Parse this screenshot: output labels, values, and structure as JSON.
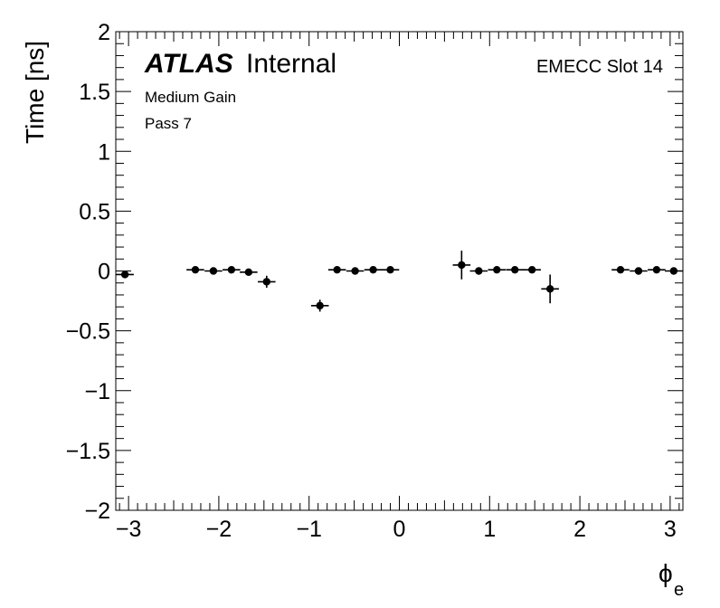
{
  "chart_data": {
    "type": "scatter",
    "xlabel": "ϕ",
    "xlabel_sub": "e",
    "ylabel": "Time [ns]",
    "xlim": [
      -3.14159,
      3.14159
    ],
    "ylim": [
      -2,
      2
    ],
    "x_ticks": [
      -3,
      -2,
      -1,
      0,
      1,
      2,
      3
    ],
    "x_tick_labels": [
      "−3",
      "−2",
      "−1",
      "0",
      "1",
      "2",
      "3"
    ],
    "y_ticks": [
      -2,
      -1.5,
      -1,
      -0.5,
      0,
      0.5,
      1,
      1.5,
      2
    ],
    "y_tick_labels": [
      "−2",
      "−1.5",
      "−1",
      "−0.5",
      "0",
      "0.5",
      "1",
      "1.5",
      "2"
    ],
    "x_bin_half_width": 0.098,
    "grid": false,
    "annotations": {
      "atlas": "ATLAS",
      "internal": "Internal",
      "gain": "Medium Gain",
      "pass": "Pass 7",
      "slot": "EMECC Slot 14"
    },
    "series": [
      {
        "x": [
          -3.04,
          -2.26,
          -2.06,
          -1.86,
          -1.67,
          -1.47,
          -0.88,
          -0.69,
          -0.49,
          -0.29,
          -0.1,
          0.69,
          0.88,
          1.08,
          1.28,
          1.47,
          1.67,
          2.45,
          2.65,
          2.85,
          3.04
        ],
        "y": [
          -0.03,
          0.01,
          0.0,
          0.01,
          -0.01,
          -0.09,
          -0.29,
          0.01,
          0.0,
          0.01,
          0.01,
          0.05,
          0.0,
          0.01,
          0.01,
          0.01,
          -0.15,
          0.01,
          0.0,
          0.01,
          0.0
        ],
        "yerr": [
          0.02,
          0.02,
          0.02,
          0.02,
          0.02,
          0.05,
          0.05,
          0.02,
          0.02,
          0.02,
          0.02,
          0.12,
          0.02,
          0.02,
          0.02,
          0.02,
          0.12,
          0.02,
          0.02,
          0.02,
          0.02
        ]
      }
    ]
  }
}
